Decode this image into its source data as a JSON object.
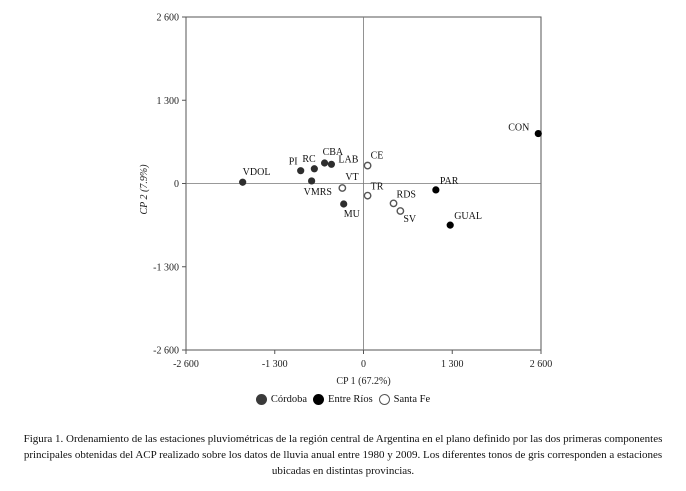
{
  "chart_data": {
    "type": "scatter",
    "xlabel": "CP 1 (67.2%)",
    "ylabel": "CP 2 (7.9%)",
    "xlim": [
      -2600,
      2600
    ],
    "ylim": [
      -2600,
      2600
    ],
    "xticks": [
      "-2 600",
      "-1 300",
      "0",
      "1 300",
      "2 600"
    ],
    "yticks": [
      "2 600",
      "1 300",
      "0",
      "-1 300",
      "-2 600"
    ],
    "xtick_values": [
      -2600,
      -1300,
      0,
      1300,
      2600
    ],
    "ytick_values": [
      2600,
      1300,
      0,
      -1300,
      -2600
    ],
    "reference_lines": {
      "x0": true,
      "y0": true
    },
    "grid": false,
    "series": [
      {
        "name": "Córdoba",
        "color": "#2e2e2e",
        "marker": "filled",
        "points": [
          {
            "label": "VDOL",
            "x": -1770,
            "y": 20
          },
          {
            "label": "PI",
            "x": -920,
            "y": 200
          },
          {
            "label": "RC",
            "x": -720,
            "y": 230
          },
          {
            "label": "CBA",
            "x": -570,
            "y": 320
          },
          {
            "label": "LAB",
            "x": -470,
            "y": 300
          },
          {
            "label": "VMRS",
            "x": -760,
            "y": 40
          },
          {
            "label": "MU",
            "x": -290,
            "y": -320
          }
        ]
      },
      {
        "name": "Entre Ríos",
        "color": "#000000",
        "marker": "filled",
        "points": [
          {
            "label": "CON",
            "x": 2560,
            "y": 780
          },
          {
            "label": "PAR",
            "x": 1060,
            "y": -100
          },
          {
            "label": "GUAL",
            "x": 1270,
            "y": -650
          }
        ]
      },
      {
        "name": "Santa Fe",
        "color": "#555555",
        "marker": "open",
        "points": [
          {
            "label": "CE",
            "x": 60,
            "y": 280
          },
          {
            "label": "VT",
            "x": -310,
            "y": -70
          },
          {
            "label": "TR",
            "x": 60,
            "y": -190
          },
          {
            "label": "RDS",
            "x": 440,
            "y": -310
          },
          {
            "label": "SV",
            "x": 540,
            "y": -430
          }
        ]
      }
    ]
  },
  "legend": {
    "items": [
      {
        "label": "Córdoba",
        "color": "#3a3a3a",
        "style": "filled"
      },
      {
        "label": "Entre Ríos",
        "color": "#000000",
        "style": "filled"
      },
      {
        "label": "Santa Fe",
        "color": "#555555",
        "style": "open"
      }
    ]
  },
  "caption": "Figura 1. Ordenamiento de las estaciones pluviométricas de la región central de Argentina en el plano definido por las dos primeras componentes principales obtenidas del ACP realizado sobre los datos de lluvia anual entre 1980 y 2009. Los diferentes tonos de gris corresponden a estaciones ubicadas en distintas provincias."
}
